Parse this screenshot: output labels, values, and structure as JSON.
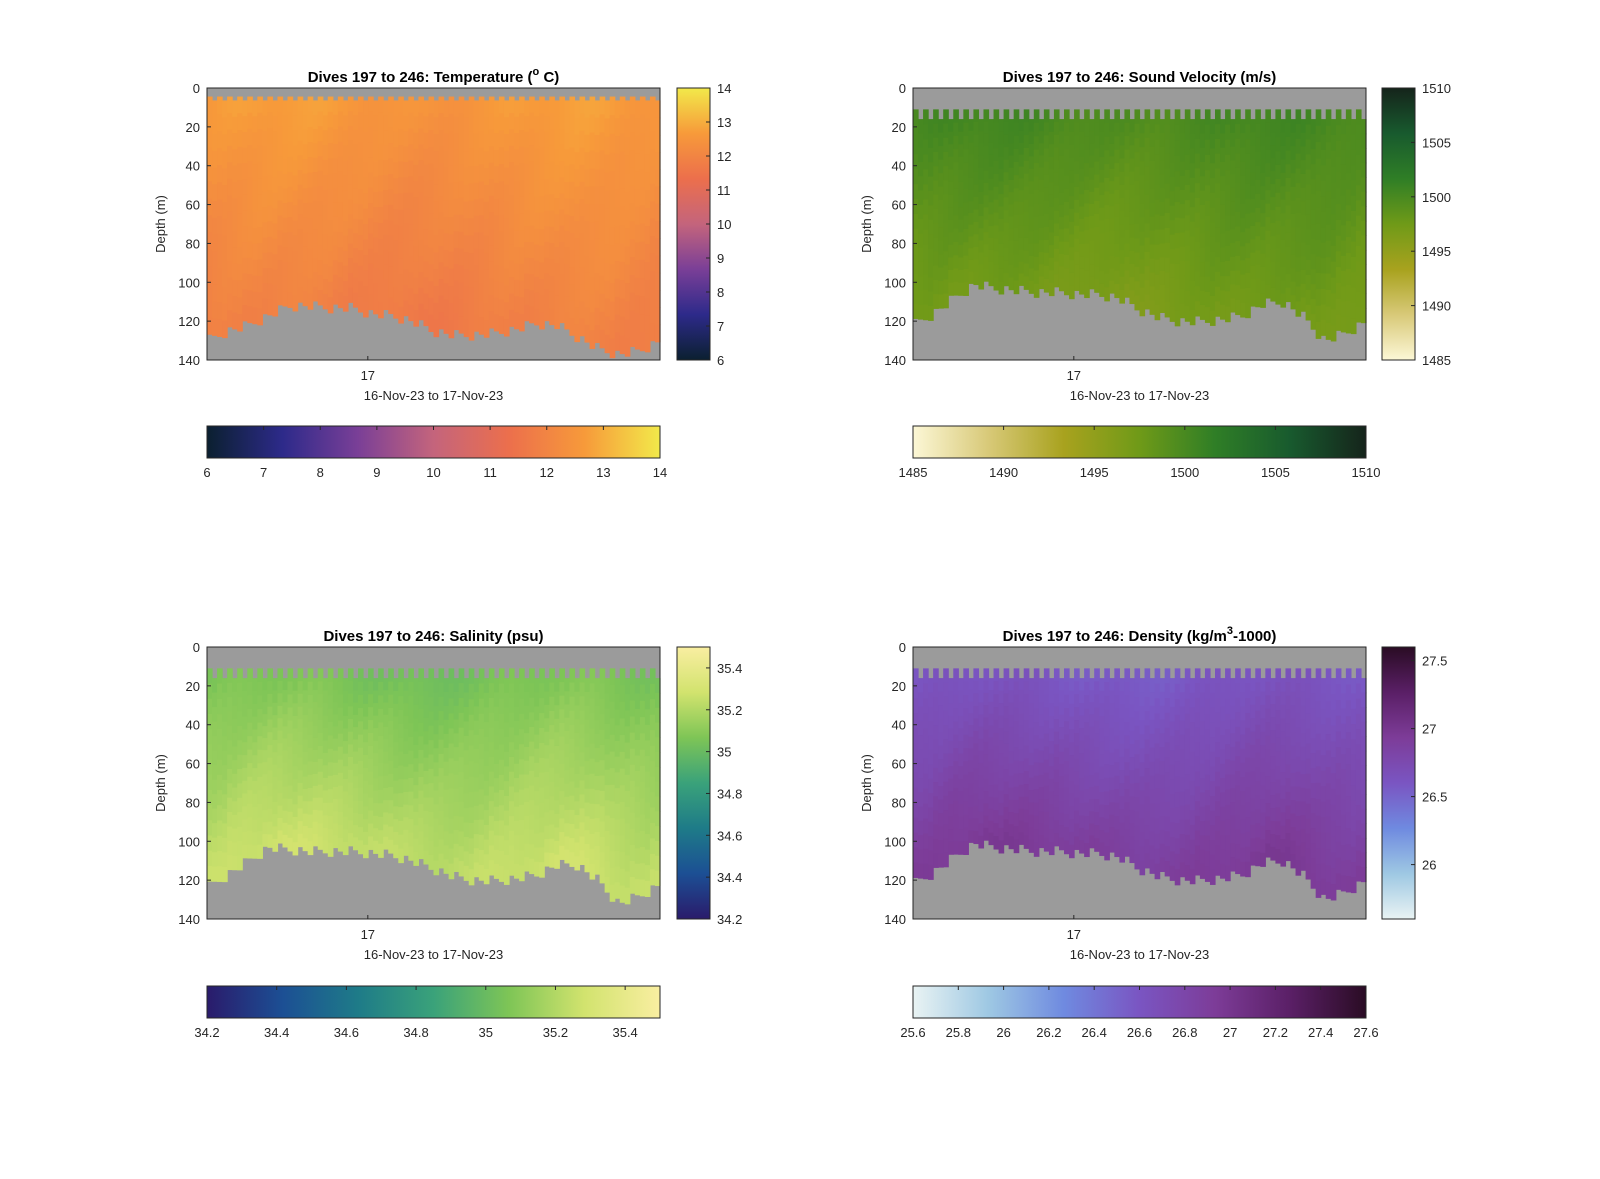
{
  "colors": {
    "nodata": "#9b9b9b",
    "axis": "#262626"
  },
  "chart_data": [
    {
      "type": "heatmap",
      "title": {
        "pre": "Dives 197 to 246: Temperature (",
        "sup": "o",
        "post": " C)"
      },
      "xlabel": "16-Nov-23 to 17-Nov-23",
      "x_ticks": [
        "17"
      ],
      "ylabel": "Depth (m)",
      "ylim": [
        0,
        140
      ],
      "y_ticks": [
        0,
        20,
        40,
        60,
        80,
        100,
        120,
        140
      ],
      "colorbar_range": [
        6,
        14
      ],
      "colorbar_ticks": [
        6,
        7,
        8,
        9,
        10,
        11,
        12,
        13,
        14
      ],
      "colormap": [
        "#0b2030",
        "#2d2a8a",
        "#7a3f97",
        "#c4647c",
        "#ec6f4c",
        "#f79a3a",
        "#f2e94a"
      ],
      "surface_value": 12.6,
      "deep_value": 11.8,
      "valid_top_depth": 4,
      "bottom_depth_profile": [
        130,
        125,
        122,
        117,
        112,
        112,
        113,
        113,
        116,
        117,
        120,
        125,
        127,
        127,
        126,
        124,
        121,
        122,
        128,
        134,
        137,
        135,
        130
      ]
    },
    {
      "type": "heatmap",
      "title": {
        "pre": "Dives 197 to 246: Sound Velocity (m/s)",
        "sup": "",
        "post": ""
      },
      "xlabel": "16-Nov-23 to 17-Nov-23",
      "x_ticks": [
        "17"
      ],
      "ylabel": "Depth (m)",
      "ylim": [
        0,
        140
      ],
      "y_ticks": [
        0,
        20,
        40,
        60,
        80,
        100,
        120,
        140
      ],
      "colorbar_range": [
        1485,
        1510
      ],
      "colorbar_ticks": [
        1485,
        1490,
        1495,
        1500,
        1505,
        1510
      ],
      "colormap": [
        "#fcf7d6",
        "#d8c978",
        "#a8a21e",
        "#6f9a18",
        "#2f7e26",
        "#185a2e",
        "#15241b"
      ],
      "surface_value": 1500,
      "deep_value": 1497,
      "valid_top_depth": 10,
      "bottom_depth_profile": [
        122,
        116,
        108,
        101,
        103,
        104,
        105,
        105,
        106,
        106,
        108,
        114,
        118,
        120,
        120,
        119,
        117,
        111,
        110,
        118,
        130,
        126,
        120
      ]
    },
    {
      "type": "heatmap",
      "title": {
        "pre": "Dives 197 to 246: Salinity (psu)",
        "sup": "",
        "post": ""
      },
      "xlabel": "16-Nov-23 to 17-Nov-23",
      "x_ticks": [
        "17"
      ],
      "ylabel": "Depth (m)",
      "ylim": [
        0,
        140
      ],
      "y_ticks": [
        0,
        20,
        40,
        60,
        80,
        100,
        120,
        140
      ],
      "colorbar_range": [
        34.2,
        35.5
      ],
      "colorbar_ticks": [
        34.2,
        34.4,
        34.6,
        34.8,
        35,
        35.2,
        35.4
      ],
      "colormap": [
        "#2a1b6b",
        "#1c4f94",
        "#1e7b88",
        "#3aa27a",
        "#7ec556",
        "#d2e36e",
        "#f9eea1"
      ],
      "surface_value": 35.05,
      "deep_value": 35.25,
      "valid_top_depth": 10,
      "bottom_depth_profile": [
        124,
        117,
        110,
        103,
        104,
        105,
        105,
        105,
        106,
        107,
        110,
        114,
        118,
        120,
        120,
        119,
        117,
        112,
        112,
        120,
        132,
        128,
        122
      ]
    },
    {
      "type": "heatmap",
      "title": {
        "pre": "Dives 197 to 246: Density (kg/m",
        "sup": "3",
        "post": "-1000)"
      },
      "xlabel": "16-Nov-23 to 17-Nov-23",
      "x_ticks": [
        "17"
      ],
      "ylabel": "Depth (m)",
      "ylim": [
        0,
        140
      ],
      "y_ticks": [
        0,
        20,
        40,
        60,
        80,
        100,
        120,
        140
      ],
      "colorbar_range": [
        25.6,
        27.6
      ],
      "colorbar_ticks": [
        25.6,
        25.8,
        26,
        26.2,
        26.4,
        26.6,
        26.8,
        27,
        27.2,
        27.4,
        27.6
      ],
      "side_colorbar_ticks": [
        26,
        26.5,
        27,
        27.5
      ],
      "colormap": [
        "#e9f3f3",
        "#9ec8e3",
        "#6f8ae0",
        "#7a55c2",
        "#7d3c98",
        "#5a1f66",
        "#2a0c24"
      ],
      "surface_value": 26.6,
      "deep_value": 26.92,
      "valid_top_depth": 10,
      "bottom_depth_profile": [
        122,
        116,
        108,
        101,
        103,
        104,
        105,
        105,
        106,
        106,
        108,
        114,
        118,
        120,
        120,
        119,
        117,
        111,
        110,
        118,
        130,
        126,
        120
      ]
    }
  ]
}
